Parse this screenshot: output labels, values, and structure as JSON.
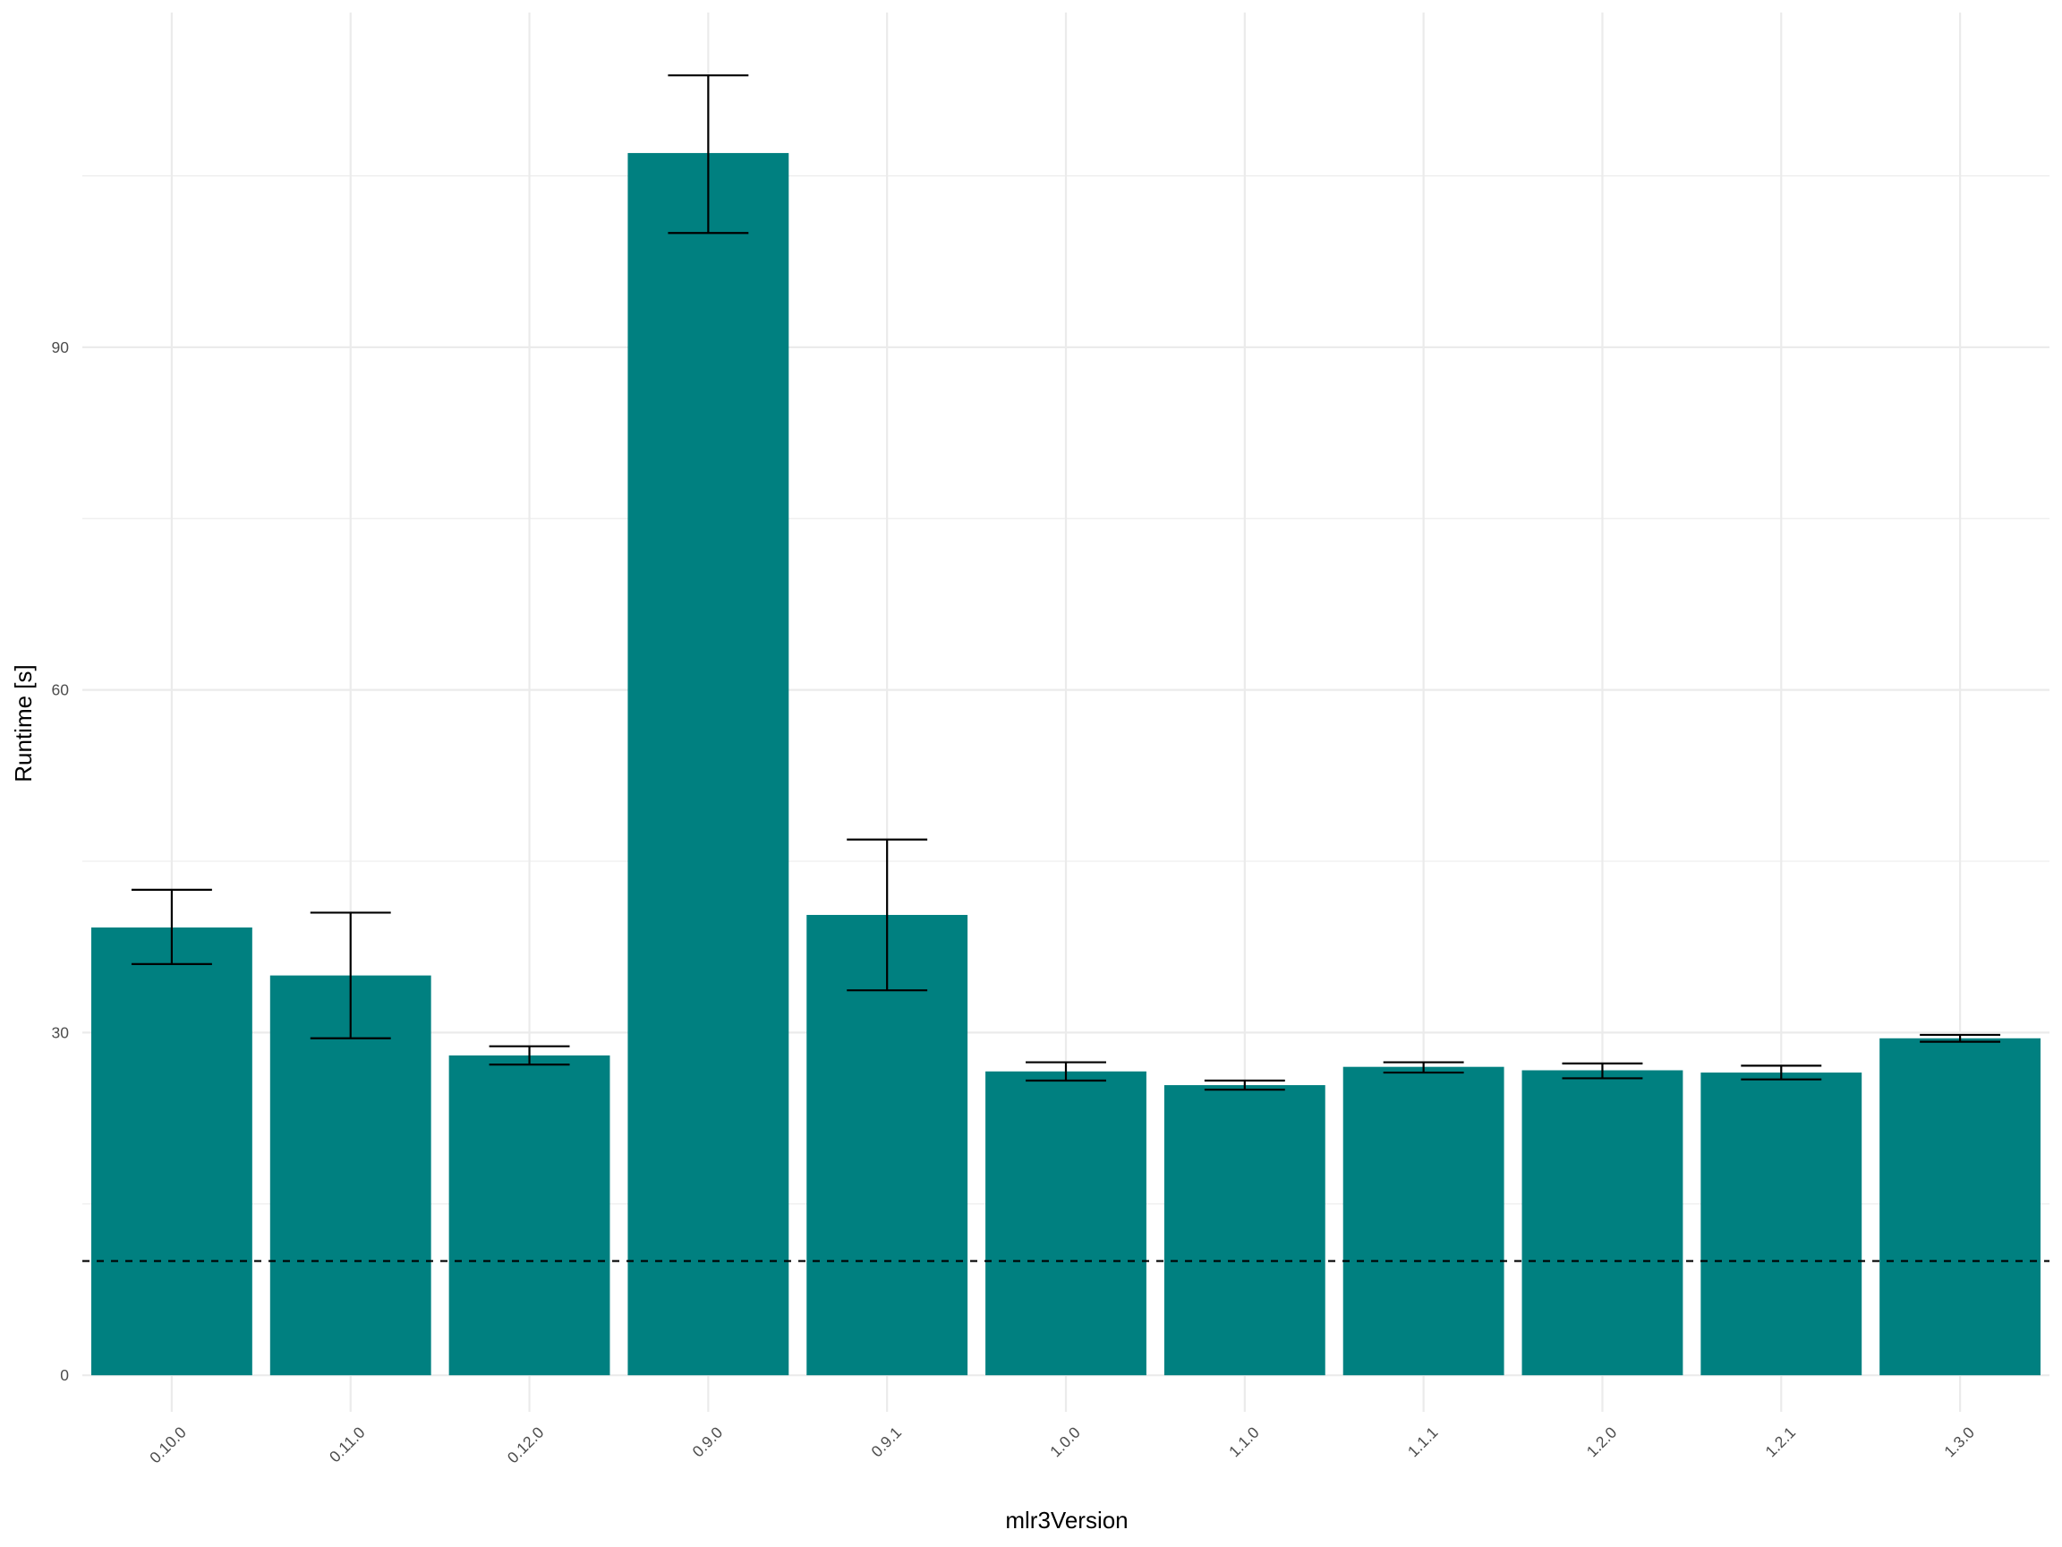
{
  "chart_data": {
    "type": "bar",
    "xlabel": "mlr3Version",
    "ylabel": "Runtime [s]",
    "categories": [
      "0.10.0",
      "0.11.0",
      "0.12.0",
      "0.9.0",
      "0.9.1",
      "1.0.0",
      "1.1.0",
      "1.1.1",
      "1.2.0",
      "1.2.1",
      "1.3.0"
    ],
    "values": [
      39.2,
      35.0,
      28.0,
      107.0,
      40.3,
      26.6,
      25.4,
      27.0,
      26.7,
      26.5,
      29.5
    ],
    "error_lower": [
      36.0,
      29.5,
      27.2,
      100.0,
      33.7,
      25.8,
      25.0,
      26.5,
      26.0,
      25.9,
      29.2
    ],
    "error_upper": [
      42.5,
      40.5,
      28.8,
      113.8,
      46.9,
      27.4,
      25.8,
      27.4,
      27.3,
      27.1,
      29.8
    ],
    "reference_line": {
      "value": 10,
      "style": "dashed"
    },
    "y_ticks": [
      0,
      30,
      60,
      90
    ],
    "ylim": [
      -3.2,
      119.3
    ],
    "grid": true,
    "colors": {
      "bar": "#008080",
      "error_bar": "#000000",
      "grid": "#ebebeb",
      "reference_line": "#000000"
    }
  }
}
